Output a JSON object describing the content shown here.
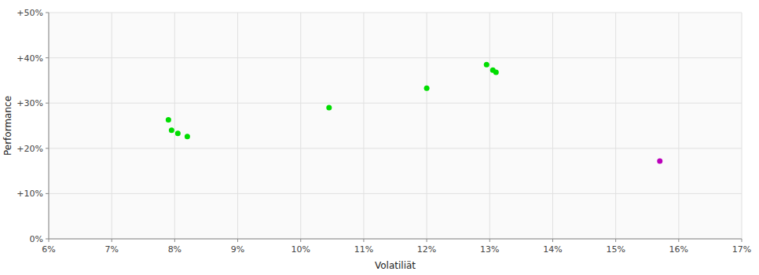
{
  "chart_data": {
    "type": "scatter",
    "xlabel": "Volatiliät",
    "ylabel": "Performance",
    "xlim": [
      0.06,
      0.17
    ],
    "ylim": [
      0.0,
      0.5
    ],
    "xticks": [
      {
        "value": 0.06,
        "label": "6%"
      },
      {
        "value": 0.07,
        "label": "7%"
      },
      {
        "value": 0.08,
        "label": "8%"
      },
      {
        "value": 0.09,
        "label": "9%"
      },
      {
        "value": 0.1,
        "label": "10%"
      },
      {
        "value": 0.11,
        "label": "11%"
      },
      {
        "value": 0.12,
        "label": "12%"
      },
      {
        "value": 0.13,
        "label": "13%"
      },
      {
        "value": 0.14,
        "label": "14%"
      },
      {
        "value": 0.15,
        "label": "15%"
      },
      {
        "value": 0.16,
        "label": "16%"
      },
      {
        "value": 0.17,
        "label": "17%"
      }
    ],
    "yticks": [
      {
        "value": 0.0,
        "label": "0%"
      },
      {
        "value": 0.1,
        "label": "+10%"
      },
      {
        "value": 0.2,
        "label": "+20%"
      },
      {
        "value": 0.3,
        "label": "+30%"
      },
      {
        "value": 0.4,
        "label": "+40%"
      },
      {
        "value": 0.5,
        "label": "+50%"
      }
    ],
    "grid": true,
    "series": [
      {
        "color": "#00dd00",
        "x": [
          0.079,
          0.0795,
          0.0805,
          0.082,
          0.1045,
          0.12,
          0.1295,
          0.1305,
          0.131
        ],
        "values": [
          0.263,
          0.24,
          0.233,
          0.226,
          0.29,
          0.333,
          0.385,
          0.373,
          0.368
        ]
      },
      {
        "color": "#bb00bb",
        "x": [
          0.157
        ],
        "values": [
          0.172
        ]
      }
    ]
  }
}
